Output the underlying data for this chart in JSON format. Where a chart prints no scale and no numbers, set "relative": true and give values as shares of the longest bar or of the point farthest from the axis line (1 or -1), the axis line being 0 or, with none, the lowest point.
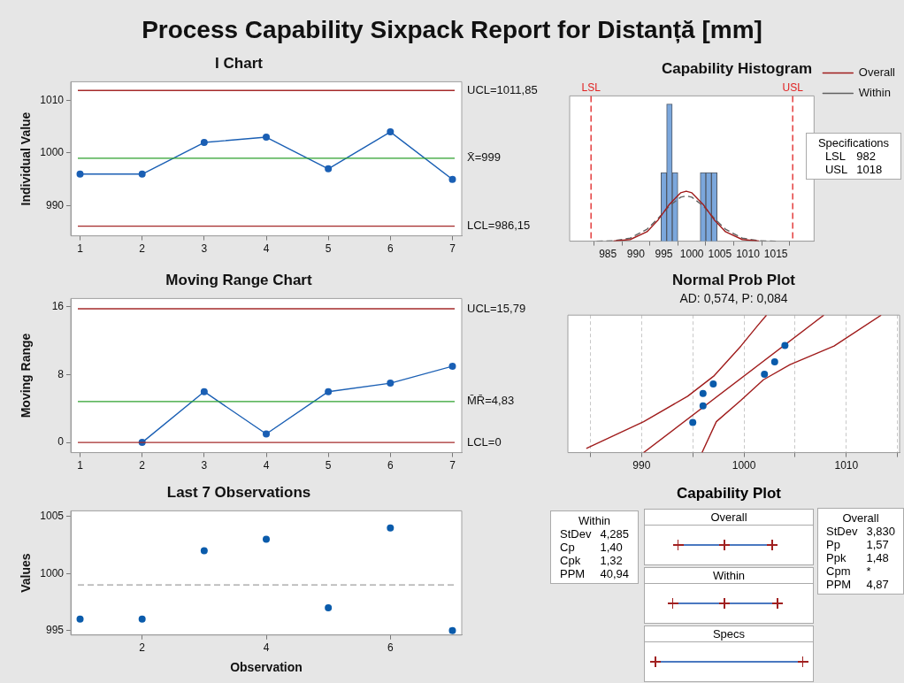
{
  "chart_data": [
    {
      "type": "line",
      "title": "Process Capability Sixpack Report for Distanță [mm]",
      "subtitle": "I Chart",
      "x": [
        1,
        2,
        3,
        4,
        5,
        6,
        7
      ],
      "values": [
        996,
        996,
        1002,
        1003,
        997,
        1004,
        995
      ],
      "color": "#1a5fb4",
      "marker": "circle",
      "xlim": [
        0.85,
        7.15
      ],
      "ylim": [
        984.3,
        1013.5
      ],
      "xticks": [
        1,
        2,
        3,
        4,
        5,
        6,
        7
      ],
      "yticks": [
        990,
        1000,
        1010
      ],
      "ylabel": "Individual Value",
      "ref_lines": [
        {
          "axis": "y",
          "value": 1011.85,
          "label": "UCL=1011,85",
          "color": "#a52a2a"
        },
        {
          "axis": "y",
          "value": 999,
          "label": "X̄=999",
          "color": "#2ca02c"
        },
        {
          "axis": "y",
          "value": 986.15,
          "label": "LCL=986,15",
          "color": "#a52a2a"
        }
      ]
    },
    {
      "type": "histogram",
      "title": "Capability Histogram",
      "bins": [
        994.5,
        995.5,
        996.5,
        997.5,
        998.5,
        999.5,
        1000.5,
        1001.5,
        1002.5,
        1003.5,
        1004.5
      ],
      "values": [
        0.5,
        1,
        0.5,
        0,
        0,
        0,
        0,
        0.5,
        0.5,
        0.5
      ],
      "color": "#7ba7dc",
      "relative": true,
      "xlim": [
        981.3,
        1018.7
      ],
      "xticks": [
        985,
        990,
        995,
        1000,
        1005,
        1010,
        1015
      ],
      "legend": "top right",
      "series": [
        {
          "name": "Overall",
          "type": "line",
          "marker": "none",
          "color": "#a01c1c",
          "x": [
            986,
            989,
            992,
            994,
            996,
            998,
            999,
            1000,
            1002,
            1004,
            1006,
            1009,
            1012
          ],
          "values": [
            0.001,
            0.012,
            0.069,
            0.156,
            0.269,
            0.353,
            0.365,
            0.353,
            0.269,
            0.156,
            0.069,
            0.012,
            0.001
          ]
        },
        {
          "name": "Within",
          "type": "line",
          "marker": "none",
          "line_style": "dashed",
          "color": "#606060",
          "x": [
            983,
            986,
            989,
            992,
            994,
            996,
            998,
            999,
            1000,
            1002,
            1004,
            1006,
            1009,
            1012,
            1015
          ],
          "values": [
            0,
            0.003,
            0.022,
            0.087,
            0.167,
            0.258,
            0.321,
            0.33,
            0.321,
            0.258,
            0.167,
            0.087,
            0.022,
            0.003,
            0
          ]
        }
      ],
      "ref_lines": [
        {
          "axis": "x",
          "value": 982,
          "label": "LSL",
          "color": "#e02020",
          "line_style": "dashed"
        },
        {
          "axis": "x",
          "value": 1018,
          "label": "USL",
          "color": "#e02020",
          "line_style": "dashed"
        }
      ],
      "annotations": [
        "Specifications",
        "LSL",
        "982",
        "USL",
        "1018"
      ]
    },
    {
      "type": "line",
      "title": "Moving Range Chart",
      "x": [
        2,
        3,
        4,
        5,
        6,
        7
      ],
      "values": [
        0,
        6,
        1,
        6,
        7,
        9
      ],
      "color": "#1a5fb4",
      "marker": "circle",
      "xlim": [
        0.85,
        7.15
      ],
      "ylim": [
        -1.2,
        17
      ],
      "xticks": [
        1,
        2,
        3,
        4,
        5,
        6,
        7
      ],
      "yticks": [
        0,
        8,
        16
      ],
      "ylabel": "Moving Range",
      "ref_lines": [
        {
          "axis": "y",
          "value": 15.79,
          "label": "UCL=15,79",
          "color": "#a52a2a"
        },
        {
          "axis": "y",
          "value": 4.83,
          "label": "M̄R̄=4,83",
          "color": "#2ca02c"
        },
        {
          "axis": "y",
          "value": 0,
          "label": "LCL=0",
          "color": "#a52a2a"
        }
      ]
    },
    {
      "type": "scatter",
      "title": "Normal Prob Plot",
      "subtitle": "AD: 0,574, P: 0,084",
      "x": [
        995,
        996,
        996,
        997,
        1002,
        1003,
        1004
      ],
      "values": [
        0.22,
        0.34,
        0.43,
        0.5,
        0.57,
        0.66,
        0.78
      ],
      "color": "#0a5bab",
      "marker": "circle",
      "relative": true,
      "grid": "x",
      "xlim": [
        982.8,
        1015.2
      ],
      "xticks": [
        {
          "value": 985,
          "label": null
        },
        990,
        {
          "value": 995,
          "label": null
        },
        1000,
        {
          "value": 1005,
          "label": null
        },
        1010,
        {
          "value": 1015,
          "label": null
        }
      ],
      "series": [
        {
          "type": "line",
          "marker": "none",
          "color": "#a01c1c",
          "x": [
            990.2,
            1007.8
          ],
          "values": [
            0,
            1
          ]
        },
        {
          "type": "line",
          "marker": "none",
          "color": "#a01c1c",
          "x": [
            984.6,
            990.2,
            994.5,
            997.1,
            999.7,
            1001.4,
            1002.2
          ],
          "values": [
            0.03,
            0.225,
            0.41,
            0.56,
            0.775,
            0.93,
            1
          ]
        },
        {
          "type": "line",
          "marker": "none",
          "color": "#a01c1c",
          "x": [
            995.9,
            997.3,
            999.7,
            1001.9,
            1004.5,
            1008.8,
            1013.4
          ],
          "values": [
            0,
            0.225,
            0.38,
            0.53,
            0.64,
            0.775,
            1
          ]
        }
      ]
    },
    {
      "type": "scatter",
      "title": "Last 7 Observations",
      "x": [
        1,
        2,
        3,
        4,
        5,
        6,
        7
      ],
      "values": [
        996,
        996,
        1002,
        1003,
        997,
        1004,
        995
      ],
      "color": "#0a5bab",
      "marker": "circle",
      "xlim": [
        0.85,
        7.15
      ],
      "ylim": [
        994.6,
        1005.5
      ],
      "xticks": [
        2,
        4,
        6
      ],
      "yticks": [
        995,
        1000,
        1005
      ],
      "xlabel": "Observation",
      "ylabel": "Values",
      "ref_lines": [
        {
          "axis": "y",
          "value": 999,
          "color": "#a0a0a0",
          "line_style": "dashed"
        }
      ]
    },
    {
      "type": "other",
      "title": "Within",
      "annotations": [
        "StDev",
        "4,285",
        "Cp",
        "1,40",
        "Cpk",
        "1,32",
        "PPM",
        "40,94"
      ]
    },
    {
      "type": "other",
      "title": "Capability Plot",
      "categories": [
        "Overall",
        "Within",
        "Specs"
      ]
    },
    {
      "type": "other",
      "title": "Overall",
      "annotations": [
        "StDev",
        "3,830",
        "Pp",
        "1,57",
        "Ppk",
        "1,48",
        "Cpm",
        "*",
        "PPM",
        "4,87"
      ]
    }
  ]
}
